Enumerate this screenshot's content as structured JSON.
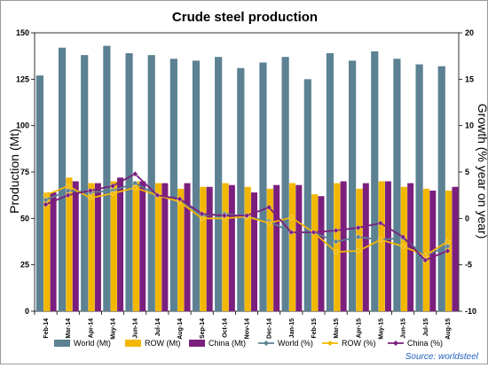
{
  "chart_data": {
    "type": "bar",
    "title": "Crude steel production",
    "ylabel": "Production (Mt)",
    "y2label": "Growth (% year on year)",
    "ylim": [
      0,
      150
    ],
    "y2lim": [
      -10,
      20
    ],
    "yticks": [
      "0",
      "25",
      "50",
      "75",
      "100",
      "125",
      "150"
    ],
    "y2ticks": [
      "-10",
      "-5",
      "0",
      "5",
      "10",
      "15",
      "20"
    ],
    "categories": [
      "Feb-14",
      "Mar-14",
      "Apr-14",
      "May-14",
      "Jun-14",
      "Jul-14",
      "Aug-14",
      "Sep-14",
      "Oct-14",
      "Nov-14",
      "Dec-14",
      "Jan-15",
      "Feb-15",
      "Mar-15",
      "Apr-15",
      "May-15",
      "Jun-15",
      "Jul-15",
      "Aug-15"
    ],
    "bar_series": [
      {
        "name": "World (Mt)",
        "color": "#5b8193",
        "values": [
          127,
          142,
          138,
          143,
          139,
          138,
          136,
          135,
          137,
          131,
          134,
          137,
          125,
          139,
          135,
          140,
          136,
          133,
          132
        ]
      },
      {
        "name": "ROW (Mt)",
        "color": "#f2b700",
        "values": [
          64,
          72,
          69,
          70,
          70,
          69,
          66,
          67,
          69,
          67,
          66,
          69,
          63,
          69,
          66,
          70,
          67,
          66,
          65
        ]
      },
      {
        "name": "China (Mt)",
        "color": "#7b1f7e",
        "values": [
          64,
          70,
          69,
          72,
          70,
          69,
          69,
          67,
          68,
          64,
          68,
          68,
          62,
          70,
          69,
          70,
          69,
          65,
          67
        ]
      }
    ],
    "line_series": [
      {
        "name": "World (%)",
        "color": "#5b8193",
        "values": [
          2.0,
          3.0,
          2.8,
          3.0,
          3.8,
          2.5,
          2.0,
          0.3,
          0.5,
          0.2,
          -0.3,
          -1.5,
          -1.5,
          -2.5,
          -2.0,
          -2.3,
          -2.1,
          -4.0,
          -3.0
        ]
      },
      {
        "name": "ROW (%)",
        "color": "#f2b700",
        "values": [
          2.5,
          3.5,
          2.2,
          2.7,
          3.3,
          2.5,
          1.8,
          0.0,
          0.0,
          0.2,
          -0.5,
          0.1,
          -1.5,
          -3.6,
          -3.5,
          -2.3,
          -3.0,
          -4.0,
          -2.5
        ]
      },
      {
        "name": "China (%)",
        "color": "#7b1f7e",
        "values": [
          1.5,
          2.5,
          3.0,
          3.5,
          4.8,
          2.5,
          2.1,
          0.5,
          0.3,
          0.3,
          1.2,
          -1.5,
          -1.5,
          -1.3,
          -1.0,
          -0.5,
          -2.0,
          -4.5,
          -3.5
        ]
      }
    ],
    "legend_position": "bottom",
    "grid": false
  },
  "source": "Source: worldsteel"
}
